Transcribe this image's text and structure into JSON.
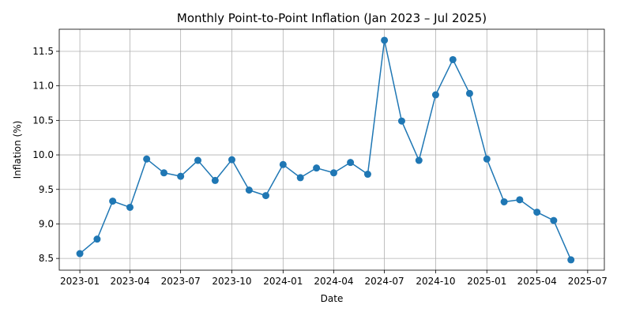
{
  "chart_data": {
    "type": "line",
    "title": "Monthly Point-to-Point Inflation (Jan 2023 – Jul 2025)",
    "xlabel": "Date",
    "ylabel": "Inflation (%)",
    "grid": true,
    "x_axis": {
      "type": "date",
      "range": [
        "2022-11-25",
        "2025-07-31"
      ],
      "ticks": [
        "2023-01",
        "2023-04",
        "2023-07",
        "2023-10",
        "2024-01",
        "2024-04",
        "2024-07",
        "2024-10",
        "2025-01",
        "2025-04",
        "2025-07"
      ]
    },
    "y_axis": {
      "range": [
        8.33,
        11.82
      ],
      "ticks": [
        "8.5",
        "9.0",
        "9.5",
        "10.0",
        "10.5",
        "11.0",
        "11.5"
      ]
    },
    "series": [
      {
        "color": "#1f77b4",
        "marker": "circle",
        "x": [
          "2023-01-01",
          "2023-02-01",
          "2023-03-01",
          "2023-04-01",
          "2023-05-01",
          "2023-06-01",
          "2023-07-01",
          "2023-08-01",
          "2023-09-01",
          "2023-10-01",
          "2023-11-01",
          "2023-12-01",
          "2024-01-01",
          "2024-02-01",
          "2024-03-01",
          "2024-04-01",
          "2024-05-01",
          "2024-06-01",
          "2024-07-01",
          "2024-08-01",
          "2024-09-01",
          "2024-10-01",
          "2024-11-01",
          "2024-12-01",
          "2025-01-01",
          "2025-02-01",
          "2025-03-01",
          "2025-04-01",
          "2025-05-01",
          "2025-06-01"
        ],
        "values": [
          8.57,
          8.78,
          9.33,
          9.24,
          9.94,
          9.74,
          9.69,
          9.92,
          9.63,
          9.93,
          9.49,
          9.41,
          9.86,
          9.67,
          9.81,
          9.74,
          9.89,
          9.72,
          11.66,
          10.49,
          9.92,
          10.87,
          11.38,
          10.89,
          9.94,
          9.32,
          9.35,
          9.17,
          9.05,
          8.48
        ]
      }
    ]
  }
}
